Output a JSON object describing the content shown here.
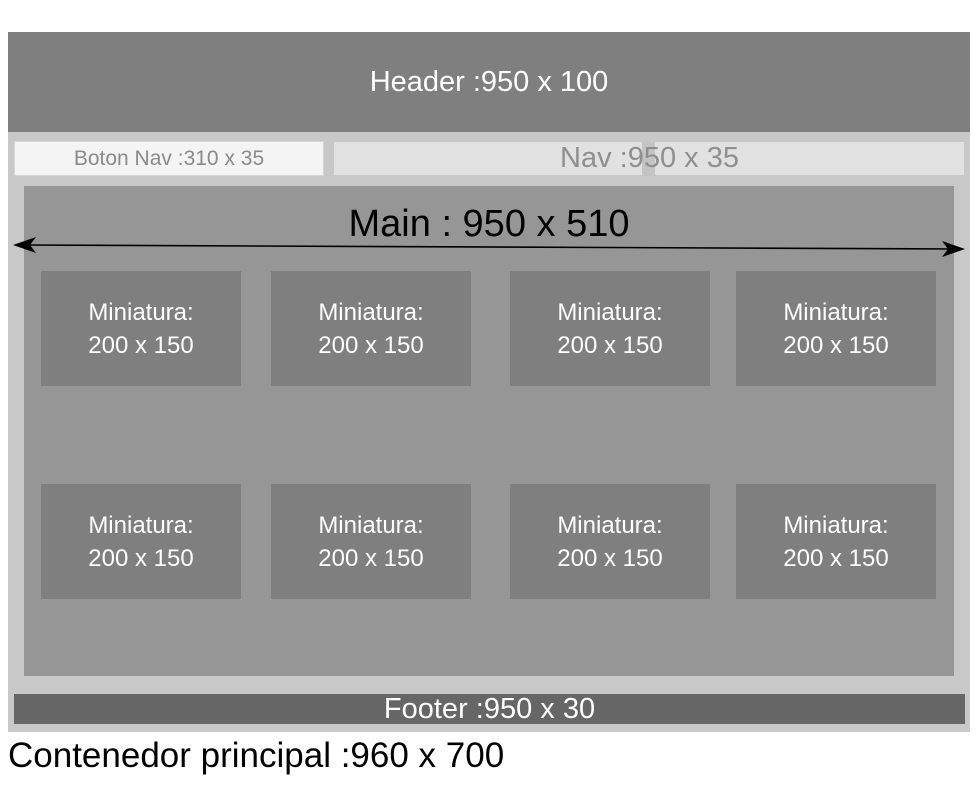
{
  "header": {
    "label": "Header :950 x 100"
  },
  "nav": {
    "label": "Nav :950 x 35",
    "button_label": "Boton Nav :310 x 35"
  },
  "main": {
    "label": "Main : 950 x 510"
  },
  "thumbnails": [
    {
      "line1": "Miniatura:",
      "line2": "200 x 150"
    },
    {
      "line1": "Miniatura:",
      "line2": "200 x 150"
    },
    {
      "line1": "Miniatura:",
      "line2": "200 x 150"
    },
    {
      "line1": "Miniatura:",
      "line2": "200 x 150"
    },
    {
      "line1": "Miniatura:",
      "line2": "200 x 150"
    },
    {
      "line1": "Miniatura:",
      "line2": "200 x 150"
    },
    {
      "line1": "Miniatura:",
      "line2": "200 x 150"
    },
    {
      "line1": "Miniatura:",
      "line2": "200 x 150"
    }
  ],
  "footer": {
    "label": "Footer :950 x 30"
  },
  "container": {
    "label": "Contenedor principal :960 x 700"
  }
}
